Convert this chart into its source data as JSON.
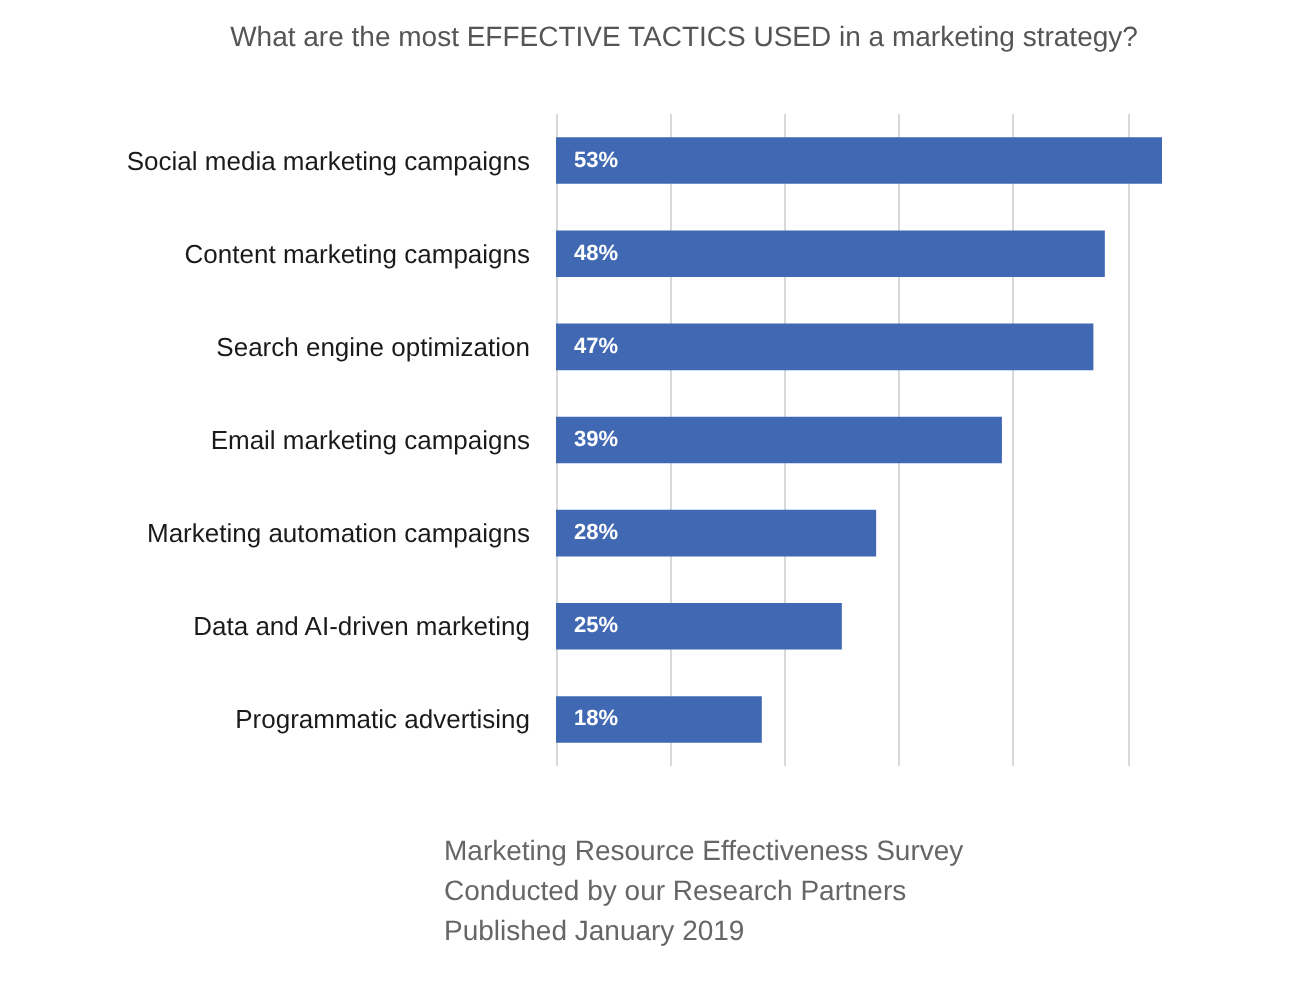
{
  "chart_data": {
    "type": "bar",
    "orientation": "horizontal",
    "title": "What are the most EFFECTIVE TACTICS USED in a marketing strategy?",
    "categories": [
      "Social media marketing campaigns",
      "Content marketing campaigns",
      "Search engine optimization",
      "Email marketing campaigns",
      "Marketing automation campaigns",
      "Data and AI-driven marketing",
      "Programmatic advertising"
    ],
    "values": [
      53,
      48,
      47,
      39,
      28,
      25,
      18
    ],
    "value_labels": [
      "53%",
      "48%",
      "47%",
      "39%",
      "28%",
      "25%",
      "18%"
    ],
    "color": "#4169b3",
    "xticks": [
      {
        "value": 0,
        "label": null
      },
      {
        "value": 10,
        "label": null
      },
      {
        "value": 20,
        "label": null
      },
      {
        "value": 30,
        "label": null
      },
      {
        "value": 40,
        "label": null
      },
      {
        "value": 50,
        "label": null
      }
    ],
    "grid": "x",
    "tick_labels": "y",
    "annotations": [
      "Marketing Resource Effectiveness Survey",
      "Conducted by our Research Partners",
      "Published January 2019"
    ]
  }
}
